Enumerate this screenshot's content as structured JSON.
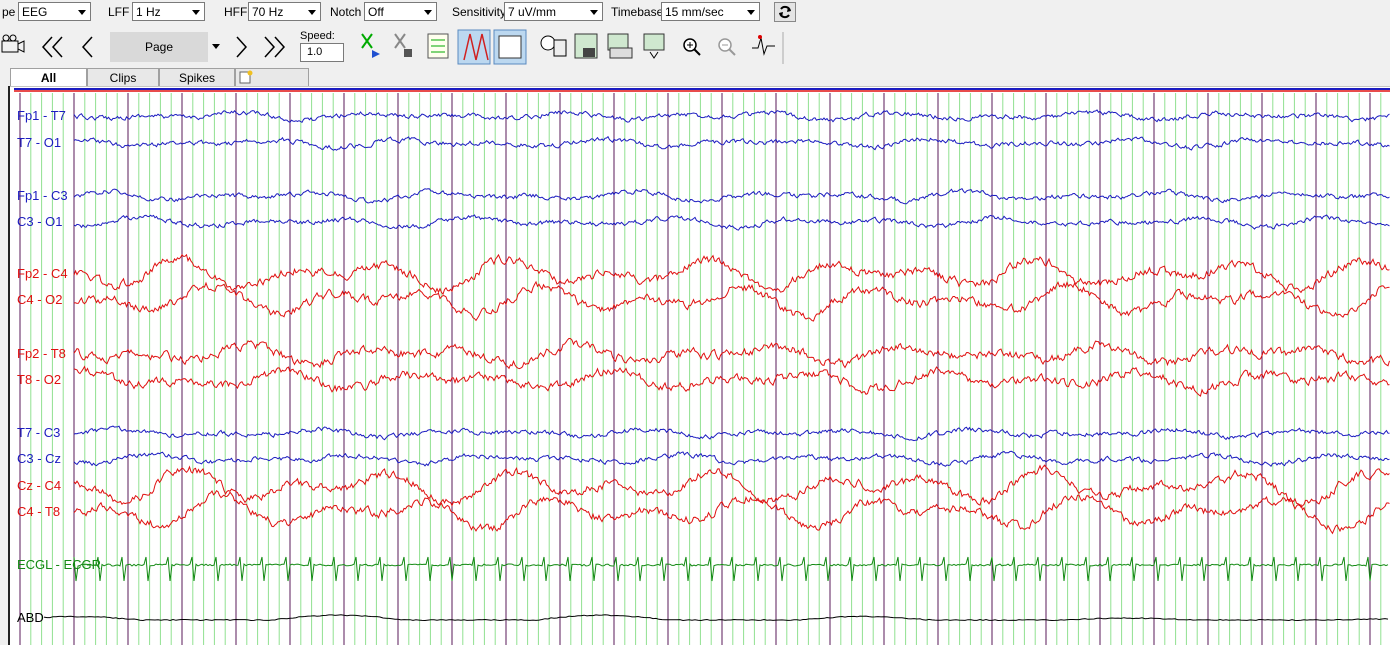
{
  "toolbar": {
    "type_label": "pe",
    "type_value": "EEG",
    "lff_label": "LFF",
    "lff_value": "1 Hz",
    "hff_label": "HFF",
    "hff_value": "70 Hz",
    "notch_label": "Notch",
    "notch_value": "Off",
    "sensitivity_label": "Sensitivity",
    "sensitivity_value": "7 uV/mm",
    "timebase_label": "Timebase",
    "timebase_value": "15 mm/sec",
    "page_button": "Page",
    "speed_label": "Speed:",
    "speed_value": "1.0"
  },
  "tabs": [
    "All",
    "Clips",
    "Spikes"
  ],
  "channels": [
    {
      "label": "Fp1 - T7",
      "color": "#1c1cc0"
    },
    {
      "label": "T7 - O1",
      "color": "#1c1cc0"
    },
    {
      "label": "Fp1 - C3",
      "color": "#1c1cc0"
    },
    {
      "label": "C3 - O1",
      "color": "#1c1cc0"
    },
    {
      "label": "Fp2 - C4",
      "color": "#e01010"
    },
    {
      "label": "C4 - O2",
      "color": "#e01010"
    },
    {
      "label": "Fp2 - T8",
      "color": "#e01010"
    },
    {
      "label": "T8 - O2",
      "color": "#e01010"
    },
    {
      "label": "T7 - C3",
      "color": "#1c1cc0"
    },
    {
      "label": "C3 - Cz",
      "color": "#1c1cc0"
    },
    {
      "label": "Cz - C4",
      "color": "#e01010"
    },
    {
      "label": "C4 - T8",
      "color": "#e01010"
    },
    {
      "label": "ECGL - ECGR",
      "color": "#138a13"
    },
    {
      "label": "ABD",
      "color": "#000000"
    }
  ]
}
